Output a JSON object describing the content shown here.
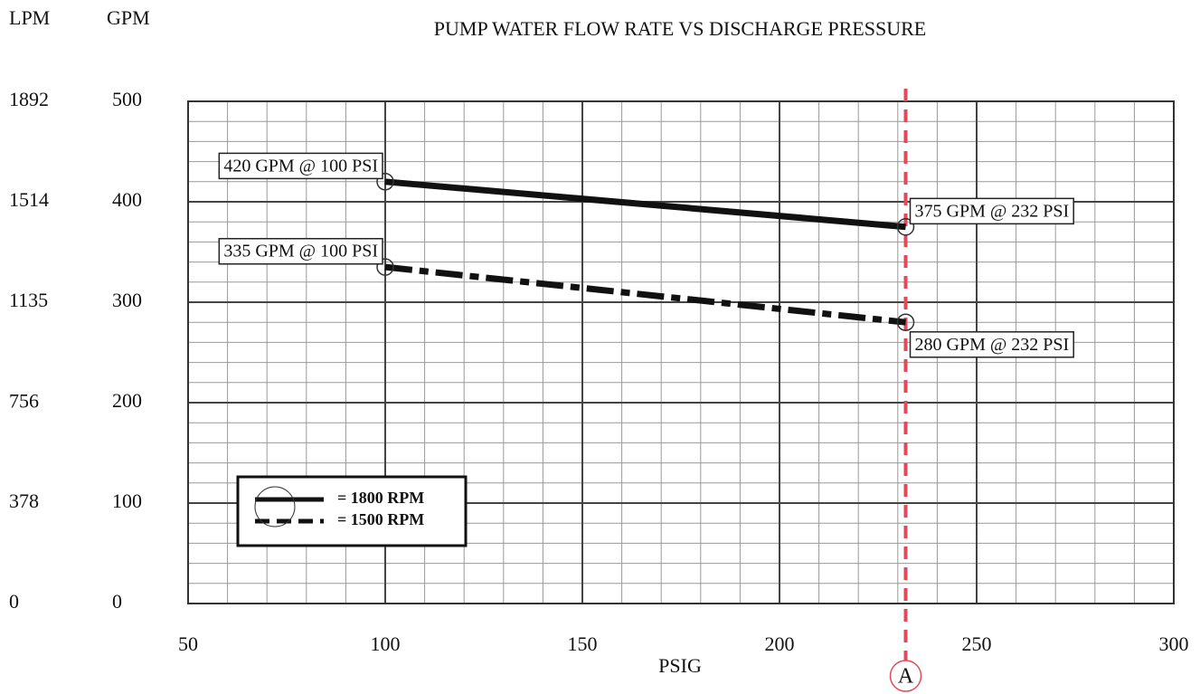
{
  "chart_data": {
    "type": "line",
    "title": "PUMP WATER FLOW RATE VS DISCHARGE PRESSURE",
    "x_label": "PSIG",
    "y_label": "GPM",
    "y2_label": "LPM",
    "x": [
      100,
      232
    ],
    "series": [
      {
        "name": "= 1800 RPM",
        "color": "#111111",
        "dash": false,
        "values": [
          420,
          375
        ],
        "value_labels": [
          "420 GPM @ 100 PSI",
          "375 GPM @ 232 PSI"
        ]
      },
      {
        "name": "= 1500 RPM",
        "color": "#111111",
        "dash": true,
        "values": [
          335,
          280
        ],
        "value_labels": [
          "335 GPM @ 100 PSI",
          "280 GPM @ 232 PSI"
        ]
      }
    ],
    "xlim": [
      50,
      300
    ],
    "xticks": [
      50,
      100,
      150,
      200,
      250,
      300
    ],
    "ylim": [
      0,
      500
    ],
    "yticks": [
      0,
      100,
      200,
      300,
      400,
      500
    ],
    "y2lim": [
      0,
      1892
    ],
    "y2ticks": [
      0,
      378,
      756,
      1135,
      1514,
      1892
    ],
    "grid": true,
    "minor_grid": {
      "x": 10,
      "y": 20
    },
    "legend": "lower left",
    "reference_line": {
      "x": 232,
      "label": "A",
      "color": "#e04a5a"
    }
  }
}
